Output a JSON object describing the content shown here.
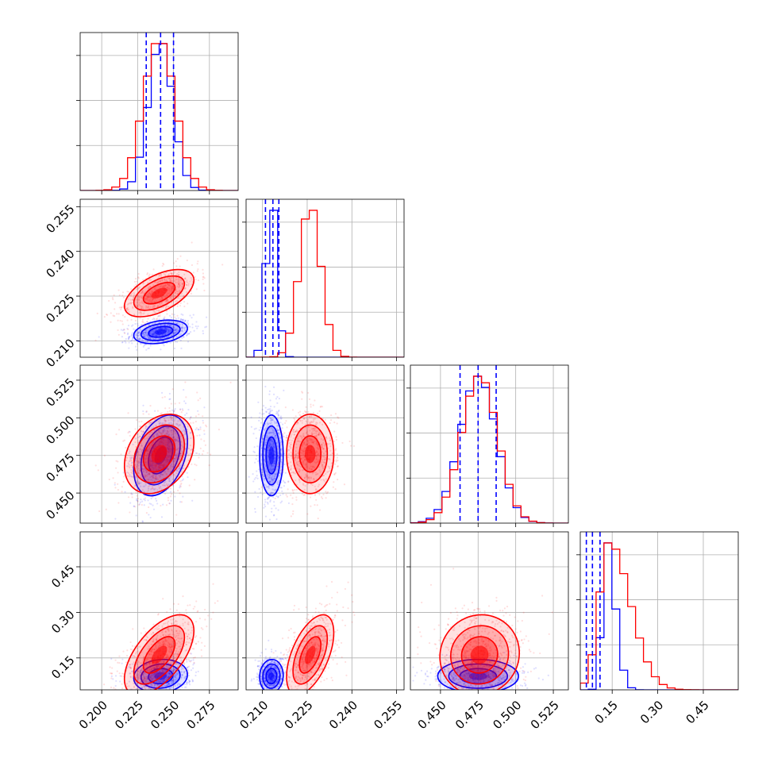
{
  "chart_data": {
    "type": "corner",
    "grid": true,
    "parameters": [
      {
        "range": [
          0.185,
          0.295
        ],
        "ticks": [
          "0.200",
          "0.225",
          "0.250",
          "0.275"
        ],
        "tick_values": [
          0.2,
          0.225,
          0.25,
          0.275
        ]
      },
      {
        "range": [
          0.2045,
          0.2575
        ],
        "ticks": [
          "0.210",
          "0.225",
          "0.240",
          "0.255"
        ],
        "tick_values": [
          0.21,
          0.225,
          0.24,
          0.255
        ]
      },
      {
        "range": [
          0.43,
          0.535
        ],
        "ticks": [
          "0.450",
          "0.475",
          "0.500",
          "0.525"
        ],
        "tick_values": [
          0.45,
          0.475,
          0.5,
          0.525
        ]
      },
      {
        "range": [
          0.045,
          0.565
        ],
        "ticks": [
          "0.15",
          "0.30",
          "0.45"
        ],
        "tick_values": [
          0.15,
          0.3,
          0.45
        ]
      }
    ],
    "series": [
      {
        "color": "#0000ff",
        "means": [
          0.241,
          0.213,
          0.475,
          0.09
        ],
        "sds": [
          0.0085,
          0.0018,
          0.0122,
          0.025
        ],
        "correlations": {
          "0-1": 0.3,
          "0-2": 0.35,
          "0-3": 0.1,
          "1-2": 0.0,
          "1-3": 0.05,
          "2-3": 0.0
        },
        "quantiles": [
          [
            0.231,
            0.241,
            0.25
          ],
          [
            0.211,
            0.2135,
            0.2155
          ],
          [
            0.463,
            0.475,
            0.487
          ],
          [
            0.065,
            0.085,
            0.11
          ]
        ],
        "hist_peaks": [
          0.241,
          0.213,
          0.475,
          0.13
        ]
      },
      {
        "color": "#ff0000",
        "means": [
          0.24,
          0.226,
          0.476,
          0.16
        ],
        "sds": [
          0.011,
          0.0036,
          0.012,
          0.06
        ],
        "correlations": {
          "0-1": 0.55,
          "0-2": 0.3,
          "0-3": 0.6,
          "1-2": 0.0,
          "1-3": 0.55,
          "2-3": 0.05
        },
        "hist_peaks": [
          0.24,
          0.226,
          0.476,
          0.14
        ]
      }
    ]
  }
}
